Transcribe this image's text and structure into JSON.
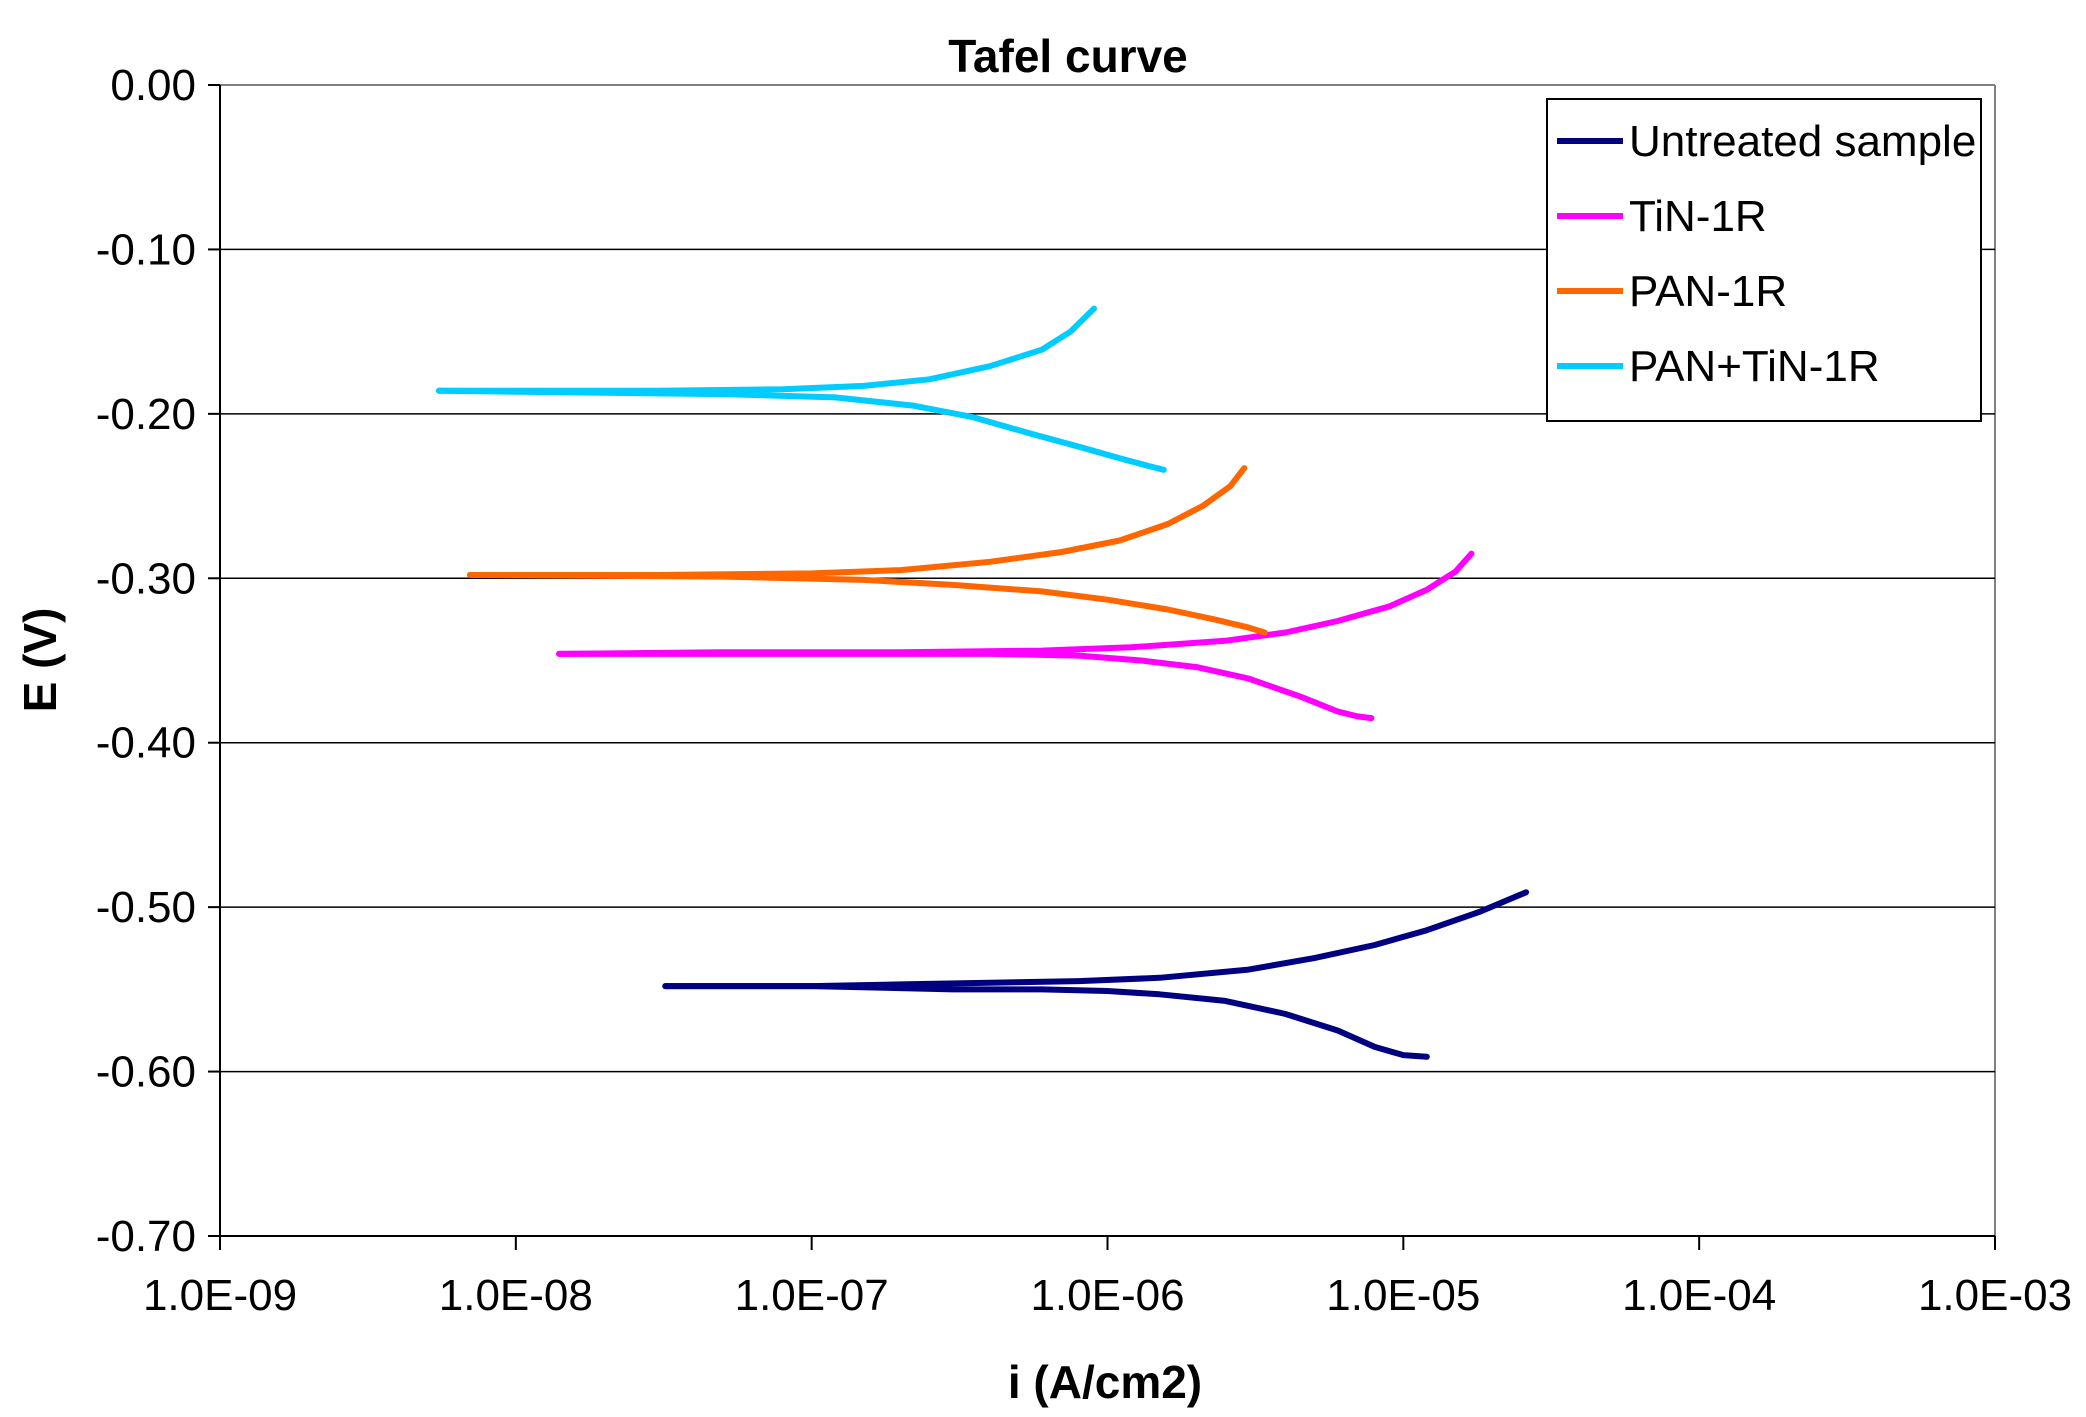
{
  "chart_data": {
    "type": "line",
    "title": "Tafel curve",
    "xlabel": "i (A/cm2)",
    "ylabel": "E (V)",
    "x_scale": "log",
    "xlim": [
      1e-09,
      0.001
    ],
    "ylim": [
      -0.7,
      0.0
    ],
    "x_ticks": [
      1e-09,
      1e-08,
      1e-07,
      1e-06,
      1e-05,
      0.0001,
      0.001
    ],
    "x_tick_labels": [
      "1.0E-09",
      "1.0E-08",
      "1.0E-07",
      "1.0E-06",
      "1.0E-05",
      "1.0E-04",
      "1.0E-03"
    ],
    "y_ticks": [
      0.0,
      -0.1,
      -0.2,
      -0.3,
      -0.4,
      -0.5,
      -0.6,
      -0.7
    ],
    "y_tick_labels": [
      "0.00",
      "-0.10",
      "-0.20",
      "-0.30",
      "-0.40",
      "-0.50",
      "-0.60",
      "-0.70"
    ],
    "grid": "horizontal",
    "legend_position": "top-right",
    "series": [
      {
        "name": "Untreated sample",
        "color": "#000080",
        "anodic": [
          [
            3.2e-08,
            -0.548
          ],
          [
            6e-08,
            -0.548
          ],
          [
            1e-07,
            -0.548
          ],
          [
            2e-07,
            -0.547
          ],
          [
            4e-07,
            -0.546
          ],
          [
            8e-07,
            -0.545
          ],
          [
            1.5e-06,
            -0.543
          ],
          [
            3e-06,
            -0.538
          ],
          [
            5e-06,
            -0.531
          ],
          [
            8e-06,
            -0.523
          ],
          [
            1.2e-05,
            -0.514
          ],
          [
            1.8e-05,
            -0.503
          ],
          [
            2.6e-05,
            -0.491
          ]
        ],
        "cathodic": [
          [
            3.2e-08,
            -0.548
          ],
          [
            1e-07,
            -0.548
          ],
          [
            3e-07,
            -0.55
          ],
          [
            6e-07,
            -0.55
          ],
          [
            1e-06,
            -0.551
          ],
          [
            1.5e-06,
            -0.553
          ],
          [
            2.5e-06,
            -0.557
          ],
          [
            4e-06,
            -0.565
          ],
          [
            6e-06,
            -0.575
          ],
          [
            8e-06,
            -0.585
          ],
          [
            1e-05,
            -0.59
          ],
          [
            1.2e-05,
            -0.591
          ]
        ]
      },
      {
        "name": "TiN-1R",
        "color": "#FF00FF",
        "anodic": [
          [
            1.4e-08,
            -0.346
          ],
          [
            5e-08,
            -0.345
          ],
          [
            2e-07,
            -0.345
          ],
          [
            6e-07,
            -0.344
          ],
          [
            1.2e-06,
            -0.342
          ],
          [
            2.5e-06,
            -0.338
          ],
          [
            4e-06,
            -0.333
          ],
          [
            6e-06,
            -0.326
          ],
          [
            9e-06,
            -0.317
          ],
          [
            1.2e-05,
            -0.307
          ],
          [
            1.5e-05,
            -0.296
          ],
          [
            1.7e-05,
            -0.285
          ]
        ],
        "cathodic": [
          [
            1.4e-08,
            -0.346
          ],
          [
            1e-07,
            -0.346
          ],
          [
            4e-07,
            -0.346
          ],
          [
            8e-07,
            -0.347
          ],
          [
            1.3e-06,
            -0.35
          ],
          [
            2e-06,
            -0.354
          ],
          [
            3e-06,
            -0.361
          ],
          [
            4.5e-06,
            -0.372
          ],
          [
            6e-06,
            -0.381
          ],
          [
            7e-06,
            -0.384
          ],
          [
            7.8e-06,
            -0.385
          ]
        ]
      },
      {
        "name": "PAN-1R",
        "color": "#FF6600",
        "anodic": [
          [
            7e-09,
            -0.298
          ],
          [
            3e-08,
            -0.298
          ],
          [
            1e-07,
            -0.297
          ],
          [
            2e-07,
            -0.295
          ],
          [
            4e-07,
            -0.29
          ],
          [
            7e-07,
            -0.284
          ],
          [
            1.1e-06,
            -0.277
          ],
          [
            1.6e-06,
            -0.267
          ],
          [
            2.1e-06,
            -0.256
          ],
          [
            2.6e-06,
            -0.244
          ],
          [
            2.9e-06,
            -0.233
          ]
        ],
        "cathodic": [
          [
            7e-09,
            -0.298
          ],
          [
            5e-08,
            -0.299
          ],
          [
            1.5e-07,
            -0.301
          ],
          [
            3e-07,
            -0.304
          ],
          [
            6e-07,
            -0.308
          ],
          [
            1e-06,
            -0.313
          ],
          [
            1.6e-06,
            -0.319
          ],
          [
            2.3e-06,
            -0.325
          ],
          [
            3e-06,
            -0.33
          ],
          [
            3.4e-06,
            -0.333
          ]
        ]
      },
      {
        "name": "PAN+TiN-1R",
        "color": "#00CCFF",
        "anodic": [
          [
            5.5e-09,
            -0.186
          ],
          [
            3e-08,
            -0.186
          ],
          [
            8e-08,
            -0.185
          ],
          [
            1.5e-07,
            -0.183
          ],
          [
            2.5e-07,
            -0.179
          ],
          [
            4e-07,
            -0.171
          ],
          [
            6e-07,
            -0.161
          ],
          [
            7.5e-07,
            -0.15
          ],
          [
            9e-07,
            -0.136
          ]
        ],
        "cathodic": [
          [
            5.5e-09,
            -0.186
          ],
          [
            5e-08,
            -0.188
          ],
          [
            1.2e-07,
            -0.19
          ],
          [
            2.2e-07,
            -0.195
          ],
          [
            3.5e-07,
            -0.202
          ],
          [
            5.5e-07,
            -0.212
          ],
          [
            8e-07,
            -0.22
          ],
          [
            1.1e-06,
            -0.227
          ],
          [
            1.4e-06,
            -0.232
          ],
          [
            1.55e-06,
            -0.234
          ]
        ]
      }
    ]
  }
}
